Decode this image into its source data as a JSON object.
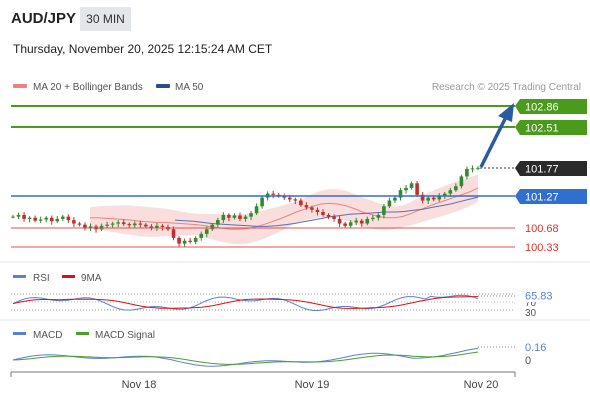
{
  "header": {
    "symbol": "AUD/JPY",
    "timeframe": "30 MIN",
    "datetime": "Thursday, November 20, 2025 12:15:24 AM CET"
  },
  "legend": {
    "ma20_label": "MA 20 + Bollinger Bands",
    "ma50_label": "MA 50",
    "credit": "Research © 2025 Trading Central",
    "ma20_color": "#f08080",
    "ma50_color": "#2b4b8c"
  },
  "colors": {
    "resistance": "#4a9a1c",
    "pivot": "#2f6fcf",
    "support": "#e05050",
    "last_price_bg": "#2a2a2a",
    "arrow": "#2b5aa0",
    "bullish": "#2e8b2e",
    "bearish": "#c0302a",
    "band_fill": "#f9d7d7"
  },
  "chart_data": [
    {
      "type": "candlestick",
      "title": "AUD/JPY",
      "timeframe": "30 MIN",
      "x_ticks": [
        "Nov 18",
        "Nov 19",
        "Nov 20"
      ],
      "price_levels": {
        "resistance": [
          102.86,
          102.51
        ],
        "last_price": 101.77,
        "pivot": 101.27,
        "support": [
          100.68,
          100.33
        ]
      },
      "price_labels": [
        "102.86",
        "102.51",
        "101.77",
        "101.27",
        "100.68",
        "100.33"
      ],
      "close_series": [
        100.92,
        100.95,
        100.88,
        100.9,
        100.85,
        100.87,
        100.9,
        100.84,
        100.88,
        100.92,
        100.86,
        100.8,
        100.78,
        100.72,
        100.75,
        100.7,
        100.76,
        100.78,
        100.8,
        100.82,
        100.79,
        100.77,
        100.8,
        100.78,
        100.75,
        100.72,
        100.76,
        100.74,
        100.7,
        100.55,
        100.45,
        100.5,
        100.48,
        100.55,
        100.62,
        100.7,
        100.78,
        100.86,
        100.95,
        100.9,
        100.94,
        100.88,
        100.92,
        100.98,
        101.1,
        101.25,
        101.32,
        101.3,
        101.28,
        101.25,
        101.22,
        101.2,
        101.12,
        101.08,
        101.04,
        101.0,
        100.95,
        100.92,
        100.88,
        100.8,
        100.76,
        100.82,
        100.85,
        100.8,
        100.88,
        100.9,
        100.95,
        101.1,
        101.2,
        101.25,
        101.38,
        101.42,
        101.5,
        101.3,
        101.2,
        101.25,
        101.22,
        101.28,
        101.32,
        101.38,
        101.45,
        101.62,
        101.75,
        101.76,
        101.77
      ],
      "ma20": [
        100.9,
        100.9,
        100.89,
        100.88,
        100.87,
        100.86,
        100.84,
        100.83,
        100.82,
        100.82,
        100.81,
        100.8,
        100.79,
        100.78,
        100.76,
        100.74,
        100.72,
        100.7,
        100.7,
        100.71,
        100.74,
        100.78,
        100.83,
        100.88,
        100.94,
        101.0,
        101.05,
        101.1,
        101.14,
        101.15,
        101.14,
        101.11,
        101.06,
        101.0,
        100.96,
        100.92,
        100.9,
        100.9,
        100.93,
        100.98,
        101.04,
        101.1,
        101.15,
        101.2,
        101.25,
        101.3,
        101.35,
        101.42
      ],
      "ma50": [
        100.86,
        100.85,
        100.84,
        100.82,
        100.8,
        100.79,
        100.78,
        100.77,
        100.76,
        100.75,
        100.75,
        100.76,
        100.78,
        100.8,
        100.83,
        100.86,
        100.89,
        100.92,
        100.94,
        100.96,
        100.97,
        100.98,
        100.99,
        101.0,
        101.0,
        101.01,
        101.03,
        101.05,
        101.08,
        101.11,
        101.14,
        101.18,
        101.22,
        101.26
      ],
      "ylim": [
        100.2,
        102.95
      ]
    },
    {
      "type": "line",
      "title": "RSI",
      "series": [
        {
          "name": "RSI",
          "color": "#5b7fd6"
        },
        {
          "name": "9MA",
          "color": "#dd1111"
        }
      ],
      "levels": [
        70,
        50,
        30
      ],
      "current_label": "65.83",
      "ylim": [
        20,
        85
      ]
    },
    {
      "type": "line",
      "title": "MACD",
      "series": [
        {
          "name": "MACD",
          "color": "#5b7fd6"
        },
        {
          "name": "MACD Signal",
          "color": "#4aa02a"
        }
      ],
      "tick_labels": [
        "0.16",
        "0"
      ],
      "current_value": 0.16
    }
  ],
  "rsi_panel": {
    "rsi_label": "RSI",
    "ma_label": "9MA",
    "value_label": "65.83",
    "level_70": "70",
    "level_30": "30"
  },
  "macd_panel": {
    "macd_label": "MACD",
    "signal_label": "MACD Signal",
    "top_label": "0.16",
    "zero_label": "0"
  }
}
